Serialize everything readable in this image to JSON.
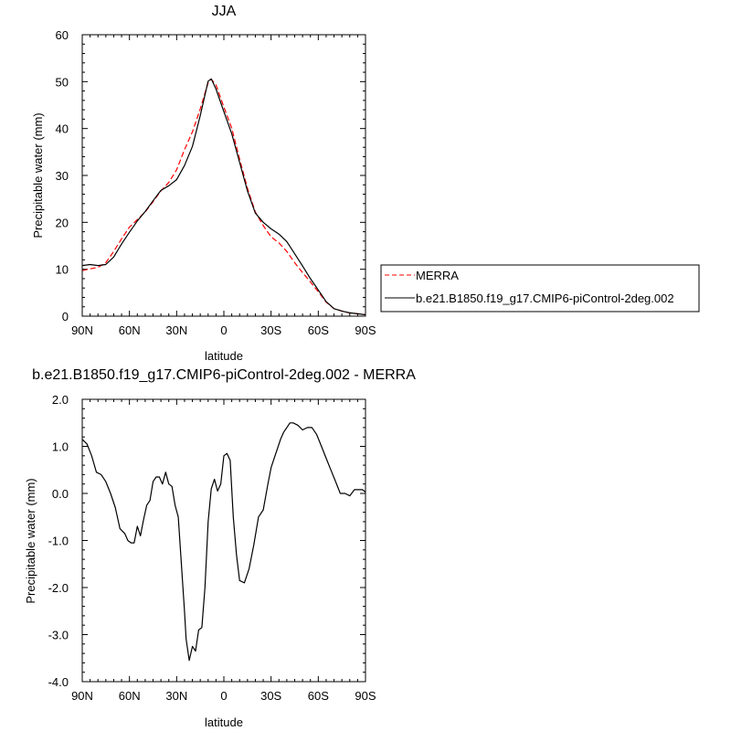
{
  "chart_data": [
    {
      "type": "line",
      "title": "JJA",
      "xlabel": "latitude",
      "ylabel": "Precipitable water (mm)",
      "xlim": [
        90,
        -90
      ],
      "ylim": [
        0,
        60
      ],
      "xticks": [
        90,
        60,
        30,
        0,
        -30,
        -60,
        -90
      ],
      "xtick_labels": [
        "90N",
        "60N",
        "30N",
        "0",
        "30S",
        "60S",
        "90S"
      ],
      "yticks": [
        0,
        10,
        20,
        30,
        40,
        50,
        60
      ],
      "ytick_labels": [
        "0",
        "10",
        "20",
        "30",
        "40",
        "50",
        "60"
      ],
      "legend_position": "right",
      "series": [
        {
          "name": "MERRA",
          "color": "#ff0000",
          "style": "dashed",
          "x": [
            90,
            85,
            80,
            75,
            70,
            65,
            60,
            55,
            50,
            45,
            40,
            35,
            30,
            25,
            20,
            15,
            10,
            8,
            5,
            0,
            -5,
            -10,
            -15,
            -20,
            -25,
            -30,
            -35,
            -40,
            -45,
            -50,
            -55,
            -60,
            -65,
            -70,
            -75,
            -80,
            -85,
            -90
          ],
          "y": [
            9.7,
            10.1,
            10.4,
            11.4,
            13.8,
            16.5,
            19.0,
            20.6,
            22.2,
            24.4,
            26.7,
            28.5,
            31.2,
            35.5,
            39.3,
            44.2,
            49.8,
            50.5,
            49.3,
            44.6,
            40.1,
            33.5,
            27.3,
            22.2,
            19.3,
            16.9,
            15.6,
            13.8,
            11.4,
            9.3,
            7.3,
            5.2,
            3.0,
            1.6,
            1.1,
            0.7,
            0.5,
            0.3
          ]
        },
        {
          "name": "b.e21.B1850.f19_g17.CMIP6-piControl-2deg.002",
          "color": "#000000",
          "style": "solid",
          "x": [
            90,
            85,
            80,
            75,
            70,
            65,
            60,
            55,
            50,
            45,
            40,
            35,
            30,
            25,
            20,
            15,
            10,
            8,
            5,
            0,
            -5,
            -10,
            -15,
            -20,
            -25,
            -30,
            -35,
            -40,
            -45,
            -50,
            -55,
            -60,
            -65,
            -70,
            -75,
            -80,
            -85,
            -90
          ],
          "y": [
            10.8,
            11.0,
            10.8,
            11.0,
            12.6,
            15.4,
            17.9,
            20.3,
            22.3,
            24.6,
            26.8,
            27.8,
            29.1,
            32.1,
            36.2,
            42.8,
            50.1,
            50.6,
            48.4,
            43.6,
            38.9,
            32.8,
            26.7,
            22.0,
            20.0,
            18.6,
            17.5,
            15.9,
            13.3,
            10.7,
            8.0,
            5.6,
            3.1,
            1.6,
            1.1,
            0.7,
            0.5,
            0.3
          ]
        }
      ]
    },
    {
      "type": "line",
      "title": "b.e21.B1850.f19_g17.CMIP6-piControl-2deg.002 - MERRA",
      "xlabel": "latitude",
      "ylabel": "Precipitable water (mm)",
      "xlim": [
        90,
        -90
      ],
      "ylim": [
        -4.0,
        2.0
      ],
      "xticks": [
        90,
        60,
        30,
        0,
        -30,
        -60,
        -90
      ],
      "xtick_labels": [
        "90N",
        "60N",
        "30N",
        "0",
        "30S",
        "60S",
        "90S"
      ],
      "yticks": [
        2.0,
        1.0,
        0.0,
        -1.0,
        -2.0,
        -3.0,
        -4.0
      ],
      "ytick_labels": [
        "2.0",
        "1.0",
        "0.0",
        "-1.0",
        "-2.0",
        "-3.0",
        "-4.0"
      ],
      "series": [
        {
          "color": "#000000",
          "style": "solid",
          "x": [
            90,
            87,
            84,
            81,
            78,
            75,
            72,
            69,
            66,
            63,
            61,
            59,
            57,
            55,
            53,
            51,
            49,
            47,
            45,
            43,
            41,
            39,
            37,
            35,
            33,
            31,
            29,
            27,
            25,
            24,
            22,
            20,
            18,
            16,
            14,
            12,
            10,
            8,
            6,
            4,
            2,
            0,
            -2,
            -4,
            -6,
            -8,
            -10,
            -13,
            -16,
            -19,
            -22,
            -25,
            -28,
            -30,
            -32,
            -34,
            -36,
            -38,
            -40,
            -42,
            -44,
            -47,
            -50,
            -53,
            -56,
            -59,
            -62,
            -65,
            -68,
            -71,
            -74,
            -77,
            -80,
            -83,
            -86,
            -88,
            -90
          ],
          "y": [
            1.15,
            1.05,
            0.8,
            0.45,
            0.4,
            0.25,
            0.0,
            -0.3,
            -0.75,
            -0.85,
            -1.0,
            -1.05,
            -1.05,
            -0.7,
            -0.9,
            -0.55,
            -0.25,
            -0.15,
            0.25,
            0.35,
            0.35,
            0.2,
            0.45,
            0.2,
            0.15,
            -0.25,
            -0.5,
            -1.5,
            -2.5,
            -3.1,
            -3.55,
            -3.25,
            -3.35,
            -2.9,
            -2.85,
            -2.0,
            -0.6,
            0.1,
            0.3,
            0.05,
            0.2,
            0.8,
            0.85,
            0.7,
            -0.5,
            -1.3,
            -1.85,
            -1.9,
            -1.6,
            -1.1,
            -0.5,
            -0.35,
            0.2,
            0.55,
            0.75,
            0.95,
            1.15,
            1.3,
            1.4,
            1.5,
            1.5,
            1.45,
            1.35,
            1.4,
            1.4,
            1.25,
            1.0,
            0.75,
            0.5,
            0.25,
            0.0,
            0.0,
            -0.05,
            0.08,
            0.08,
            0.08,
            0.03
          ]
        }
      ]
    }
  ]
}
